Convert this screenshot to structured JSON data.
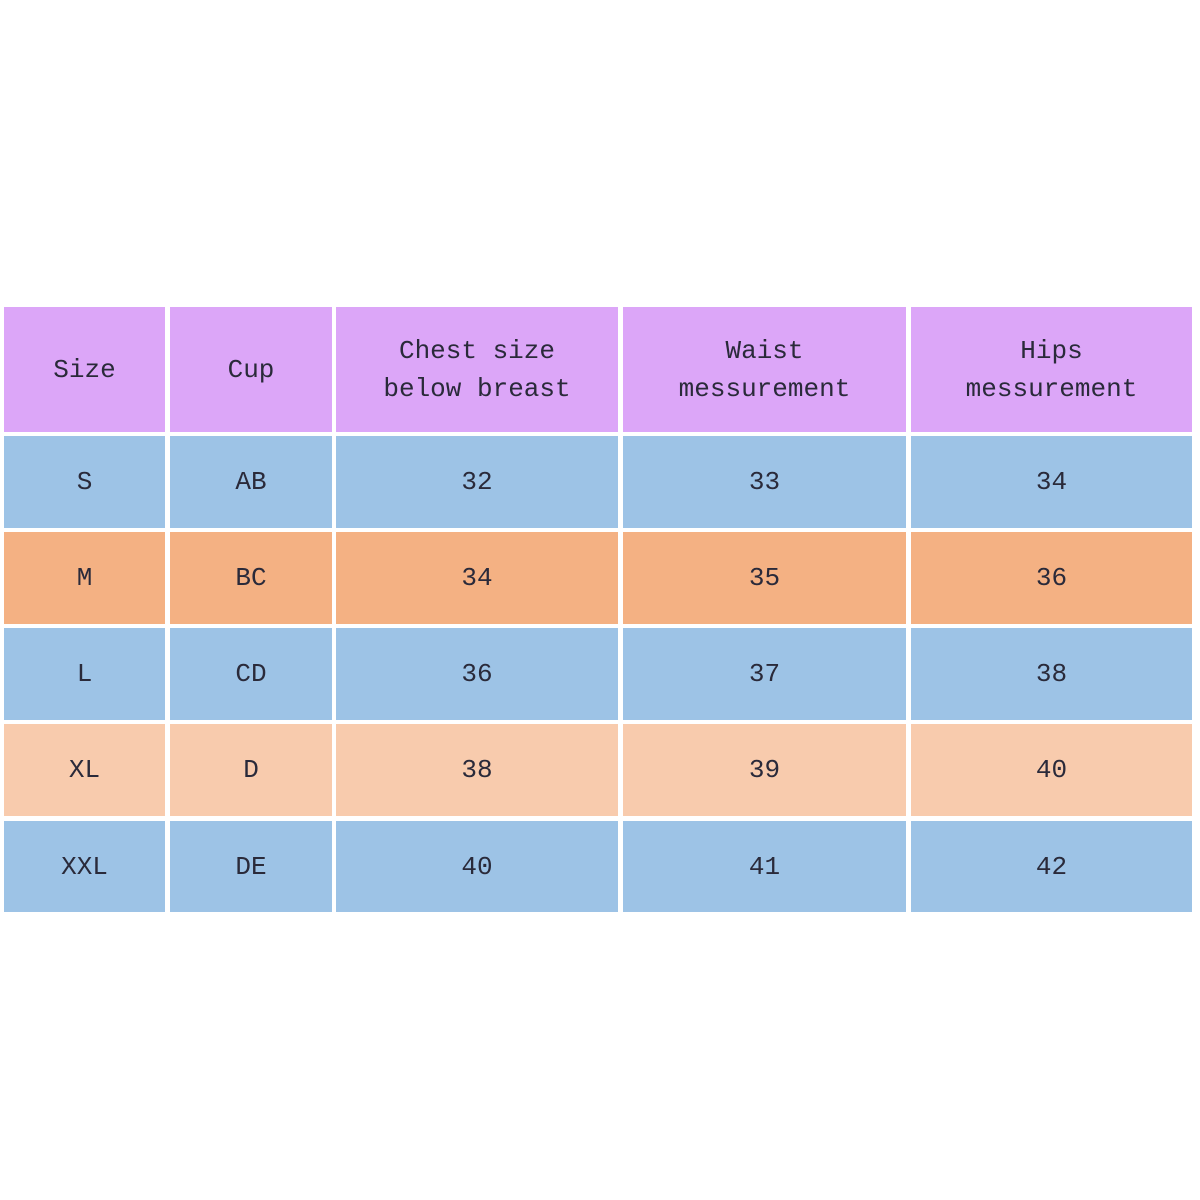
{
  "colors": {
    "header": "#dca6f8",
    "row_blue": "#9dc3e6",
    "row_orange": "#f4b183",
    "row_peach": "#f8cbad"
  },
  "table": {
    "headers": [
      "Size",
      "Cup",
      "Chest size\nbelow breast",
      "Waist\nmessurement",
      "Hips\nmessurement"
    ],
    "rows": [
      {
        "color": "blue",
        "cells": [
          "S",
          "AB",
          "32",
          "33",
          "34"
        ]
      },
      {
        "color": "orange",
        "cells": [
          "M",
          "BC",
          "34",
          "35",
          "36"
        ]
      },
      {
        "color": "blue",
        "cells": [
          "L",
          "CD",
          "36",
          "37",
          "38"
        ]
      },
      {
        "color": "peach",
        "cells": [
          "XL",
          "D",
          "38",
          "39",
          "40"
        ]
      },
      {
        "color": "blue",
        "cells": [
          "XXL",
          "DE",
          "40",
          "41",
          "42"
        ]
      }
    ]
  }
}
